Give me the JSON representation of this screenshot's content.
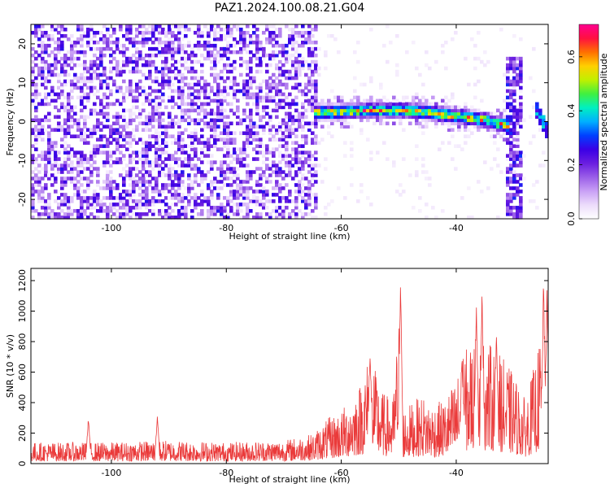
{
  "title": "PAZ1.2024.100.08.21.G04",
  "chart_data": [
    {
      "type": "heatmap",
      "xlabel": "Height of straight line (km)",
      "ylabel": "Frequency (Hz)",
      "xlim": [
        -114,
        -24
      ],
      "ylim": [
        -25,
        25
      ],
      "xticks": [
        -100,
        -80,
        -60,
        -40
      ],
      "yticks": [
        -20,
        -10,
        0,
        10,
        20
      ],
      "colorbar": {
        "label": "Normalized spectral amplitude",
        "range": [
          0.0,
          0.72
        ],
        "ticks": [
          0.0,
          0.2,
          0.4,
          0.6
        ],
        "tick_labels": [
          "0.0",
          "0.2",
          "0.4",
          "0.6"
        ],
        "colormap": [
          "#ffffff",
          "#ecdcfb",
          "#c9a0f5",
          "#9a5ee8",
          "#6a1ee0",
          "#3a00e6",
          "#0040ff",
          "#00b0ff",
          "#00f0c0",
          "#40f040",
          "#c0f000",
          "#ffd000",
          "#ff7000",
          "#ff1040",
          "#ff0090"
        ]
      },
      "features": [
        {
          "name": "noise",
          "x_range": [
            -114,
            -64
          ],
          "y_range": [
            -25,
            25
          ],
          "level": 0.12
        },
        {
          "name": "main-trace",
          "x": [
            -65,
            -60,
            -55,
            -50,
            -45,
            -40,
            -35,
            -31
          ],
          "y": [
            2.5,
            2.5,
            3,
            3,
            2.5,
            1.5,
            0.5,
            -1
          ],
          "peak": 0.72
        },
        {
          "name": "vertical-streak",
          "x": -30,
          "y_range": [
            -25,
            17
          ],
          "level": 0.3
        },
        {
          "name": "right-trace",
          "x": [
            -26,
            -24
          ],
          "y": [
            3,
            -3
          ],
          "level": 0.4
        }
      ]
    },
    {
      "type": "line",
      "xlabel": "Height of straight line (km)",
      "ylabel": "SNR (10 * v/v)",
      "xlim": [
        -114,
        -24
      ],
      "ylim": [
        0,
        1280
      ],
      "xticks": [
        -100,
        -80,
        -60,
        -40
      ],
      "yticks": [
        0,
        200,
        400,
        600,
        800,
        1000,
        1200
      ],
      "color": "#ea3a3a",
      "envelope": {
        "x": [
          -114,
          -100,
          -90,
          -80,
          -70,
          -65,
          -62,
          -60,
          -57,
          -55,
          -53,
          -51,
          -50,
          -49.5,
          -48,
          -46,
          -44,
          -42,
          -40,
          -38,
          -36,
          -34,
          -32,
          -30,
          -28,
          -26,
          -25,
          -24
        ],
        "y": [
          100,
          100,
          110,
          100,
          110,
          140,
          220,
          250,
          360,
          520,
          340,
          300,
          700,
          250,
          280,
          320,
          280,
          300,
          400,
          560,
          600,
          560,
          500,
          420,
          300,
          500,
          660,
          600
        ]
      },
      "peaks": [
        {
          "x": -49.7,
          "y": 1280
        },
        {
          "x": -55,
          "y": 800
        },
        {
          "x": -36.5,
          "y": 1150
        },
        {
          "x": -35.5,
          "y": 1180
        },
        {
          "x": -39,
          "y": 740
        },
        {
          "x": -33,
          "y": 900
        },
        {
          "x": -24.8,
          "y": 1260
        },
        {
          "x": -24.2,
          "y": 1200
        },
        {
          "x": -92,
          "y": 340
        },
        {
          "x": -104,
          "y": 320
        }
      ]
    }
  ]
}
